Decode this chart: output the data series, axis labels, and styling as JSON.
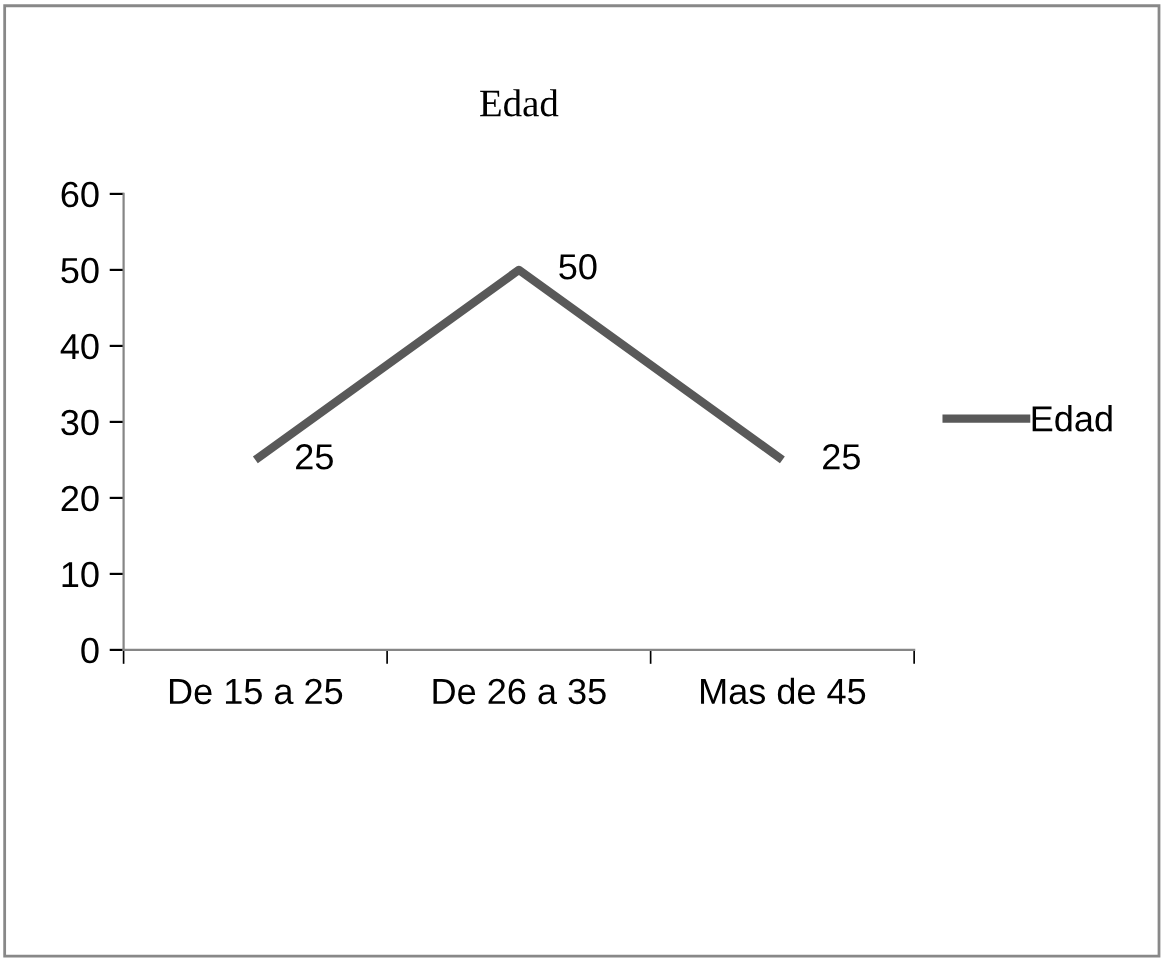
{
  "chart_data": {
    "type": "line",
    "title": "Edad",
    "categories": [
      "De 15 a 25",
      "De 26 a 35",
      "Mas de 45"
    ],
    "series": [
      {
        "name": "Edad",
        "color": "#595959",
        "values": [
          25,
          50,
          25
        ]
      }
    ],
    "ylim": [
      0,
      60
    ],
    "yticks": [
      0,
      10,
      20,
      30,
      40,
      50,
      60
    ],
    "grid": false,
    "legend": "right",
    "marker": "none",
    "line_style": "solid",
    "data_labels": true
  }
}
